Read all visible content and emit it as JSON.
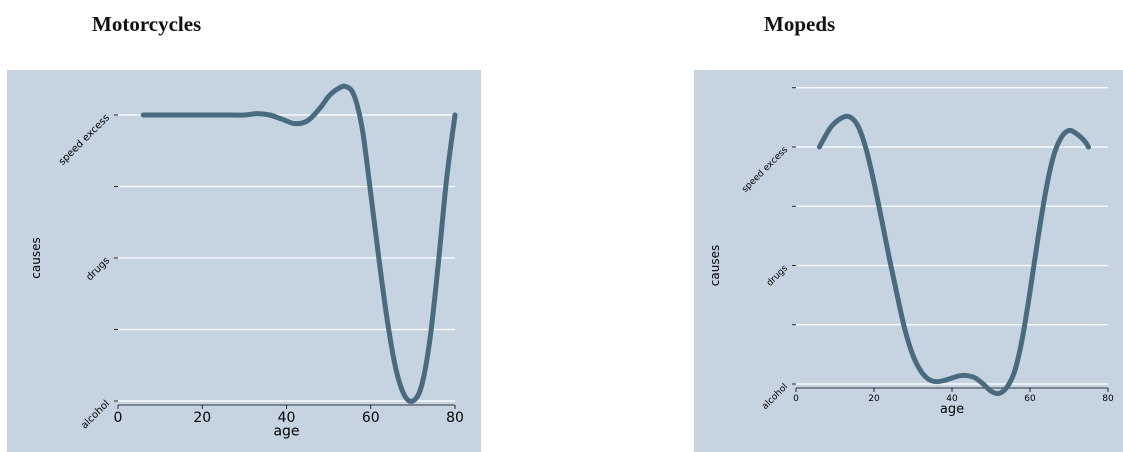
{
  "chart_data": [
    {
      "type": "line",
      "title": "Motorcycles",
      "xlabel": "age",
      "ylabel": "causes",
      "xlim": [
        0,
        80
      ],
      "ylim": [
        0,
        2
      ],
      "x_ticks": [
        0,
        20,
        40,
        60,
        80
      ],
      "y_ticks": [
        {
          "value": 0,
          "label": "alcohol"
        },
        {
          "value": 0.5,
          "label": ""
        },
        {
          "value": 1,
          "label": "drugs"
        },
        {
          "value": 1.5,
          "label": ""
        },
        {
          "value": 2,
          "label": "speed excess"
        }
      ],
      "grid": true,
      "series": [
        {
          "color": "#4a6a80",
          "x": [
            6,
            10,
            15,
            20,
            25,
            30,
            33,
            36,
            39,
            42,
            45,
            48,
            50,
            52,
            54,
            56,
            58,
            60,
            62,
            64,
            66,
            68,
            70,
            72,
            74,
            76,
            78,
            80
          ],
          "y": [
            2.0,
            2.0,
            2.0,
            2.0,
            2.0,
            2.0,
            2.01,
            2.0,
            1.97,
            1.94,
            1.96,
            2.05,
            2.13,
            2.18,
            2.2,
            2.14,
            1.9,
            1.45,
            0.98,
            0.55,
            0.22,
            0.04,
            0.0,
            0.1,
            0.42,
            0.95,
            1.55,
            2.0
          ]
        }
      ]
    },
    {
      "type": "line",
      "title": "Mopeds",
      "xlabel": "age",
      "ylabel": "causes",
      "xlim": [
        0,
        80
      ],
      "ylim": [
        0,
        2
      ],
      "x_ticks": [
        0,
        20,
        40,
        60,
        80
      ],
      "y_ticks": [
        {
          "value": 0,
          "label": "alcohol"
        },
        {
          "value": 0.5,
          "label": ""
        },
        {
          "value": 1,
          "label": "drugs"
        },
        {
          "value": 1.5,
          "label": ""
        },
        {
          "value": 2,
          "label": "speed excess"
        },
        {
          "value": 2.5,
          "label": ""
        }
      ],
      "grid": true,
      "series": [
        {
          "color": "#4a6a80",
          "x": [
            6,
            9,
            12,
            14,
            16,
            18,
            20,
            22,
            24,
            26,
            28,
            30,
            32,
            34,
            36,
            38,
            40,
            42,
            44,
            46,
            48,
            50,
            52,
            54,
            56,
            58,
            60,
            62,
            64,
            66,
            68,
            70,
            72,
            74,
            75
          ],
          "y": [
            2.0,
            2.17,
            2.25,
            2.25,
            2.17,
            1.98,
            1.7,
            1.38,
            1.05,
            0.74,
            0.45,
            0.24,
            0.11,
            0.04,
            0.02,
            0.03,
            0.05,
            0.07,
            0.07,
            0.05,
            0.0,
            -0.06,
            -0.08,
            -0.03,
            0.1,
            0.38,
            0.78,
            1.22,
            1.62,
            1.92,
            2.08,
            2.14,
            2.11,
            2.05,
            2.0
          ]
        }
      ]
    }
  ]
}
